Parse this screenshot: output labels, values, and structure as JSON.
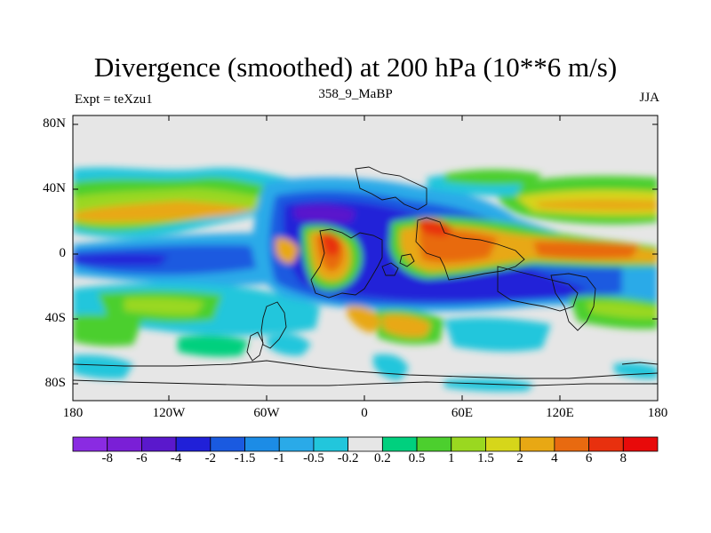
{
  "title": "Divergence (smoothed) at 200 hPa (10**6 m/s)",
  "experiment_label": "Expt = teXzu1",
  "subtitle": "358_9_MaBP",
  "season": "JJA",
  "lat_labels": [
    "80N",
    "40N",
    "0",
    "40S",
    "80S"
  ],
  "lon_labels": [
    "180",
    "120W",
    "60W",
    "0",
    "60E",
    "120E",
    "180"
  ],
  "colorbar": {
    "colors": [
      "#8a2be2",
      "#7a1fd6",
      "#5a18cc",
      "#2020d8",
      "#1a5ae0",
      "#1c8ce6",
      "#2aaae8",
      "#22c6dc",
      "#e6e6e6",
      "#00d07e",
      "#4ccf2e",
      "#9ad820",
      "#d6d61a",
      "#e8a814",
      "#e86a10",
      "#e8300e",
      "#e80a0a"
    ],
    "labels": [
      "-8",
      "-6",
      "-4",
      "-2",
      "-1.5",
      "-1",
      "-0.5",
      "-0.2",
      "0.2",
      "0.5",
      "1",
      "1.5",
      "2",
      "4",
      "6",
      "8"
    ]
  }
}
